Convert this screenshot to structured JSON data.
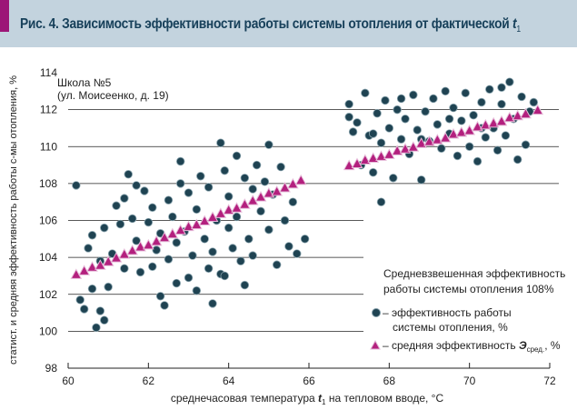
{
  "title": {
    "text": "Рис. 4. Зависимость эффективности работы системы отопления от фактической",
    "variable": "t",
    "subscript": "1"
  },
  "colors": {
    "title_bg": "#c3d3de",
    "accent": "#9c1677",
    "dots": "#1f4352",
    "triangles": "#b3207e"
  },
  "chart_data": {
    "type": "scatter",
    "xlabel": "среднечасовая температура t1 на тепловом вводе, °C",
    "xlabel_parts": {
      "before": "среднечасовая температура ",
      "var": "t",
      "sub": "1",
      "after": " на тепловом вводе, °C"
    },
    "ylabel": "статист. и средняя эффективность  работы с-мы отопления, %",
    "xlim": [
      60,
      72
    ],
    "ylim": [
      98,
      114
    ],
    "xticks": [
      "60",
      "62",
      "64",
      "66",
      "68",
      "70",
      "72"
    ],
    "yticks": [
      "98",
      "100",
      "102",
      "104",
      "106",
      "108",
      "110",
      "112",
      "114"
    ],
    "grid": "horizontal",
    "annotation": {
      "line1": "Школа №5",
      "line2": "(ул. Моисеенко, д. 19)"
    },
    "note": {
      "line1": "Средневзвешенная эффективность",
      "line2": "работы системы отопления 108%"
    },
    "legend": {
      "placement": "bottom-right",
      "dots_line1": "– эффективность работы",
      "dots_line2": "системы отопления, %",
      "tri_before": "– средняя эффективность ",
      "tri_var": "Э",
      "tri_sub": "сред.",
      "tri_after": ", %"
    },
    "series": [
      {
        "name": "эффективность работы системы отопления, %",
        "marker": "circle",
        "points": [
          [
            60.2,
            107.9
          ],
          [
            60.3,
            101.7
          ],
          [
            60.4,
            101.2
          ],
          [
            60.5,
            104.5
          ],
          [
            60.6,
            105.2
          ],
          [
            60.6,
            102.3
          ],
          [
            60.7,
            100.2
          ],
          [
            60.8,
            101.1
          ],
          [
            60.8,
            103.8
          ],
          [
            60.9,
            100.6
          ],
          [
            60.9,
            105.6
          ],
          [
            61.0,
            102.4
          ],
          [
            61.1,
            104.2
          ],
          [
            61.2,
            106.8
          ],
          [
            61.3,
            105.8
          ],
          [
            61.4,
            107.2
          ],
          [
            61.4,
            103.4
          ],
          [
            61.5,
            108.5
          ],
          [
            61.6,
            106.1
          ],
          [
            61.7,
            104.9
          ],
          [
            61.8,
            103.2
          ],
          [
            61.9,
            107.6
          ],
          [
            62.0,
            105.9
          ],
          [
            62.1,
            106.7
          ],
          [
            62.1,
            103.5
          ],
          [
            62.2,
            104.4
          ],
          [
            62.3,
            105.3
          ],
          [
            62.4,
            101.4
          ],
          [
            62.5,
            107.1
          ],
          [
            62.5,
            103.9
          ],
          [
            62.6,
            106.2
          ],
          [
            62.7,
            104.8
          ],
          [
            62.7,
            102.6
          ],
          [
            62.8,
            109.2
          ],
          [
            62.8,
            108.0
          ],
          [
            62.9,
            105.4
          ],
          [
            63.0,
            102.9
          ],
          [
            63.0,
            107.5
          ],
          [
            63.1,
            104.1
          ],
          [
            63.2,
            106.6
          ],
          [
            63.2,
            102.2
          ],
          [
            63.3,
            108.4
          ],
          [
            63.4,
            105.0
          ],
          [
            63.5,
            103.4
          ],
          [
            63.5,
            107.8
          ],
          [
            63.6,
            104.3
          ],
          [
            63.7,
            106.0
          ],
          [
            63.8,
            110.2
          ],
          [
            63.8,
            103.1
          ],
          [
            63.9,
            108.7
          ],
          [
            64.0,
            105.6
          ],
          [
            64.0,
            107.3
          ],
          [
            64.1,
            104.5
          ],
          [
            64.2,
            109.5
          ],
          [
            64.2,
            106.2
          ],
          [
            64.3,
            103.8
          ],
          [
            64.4,
            108.3
          ],
          [
            64.5,
            105.0
          ],
          [
            64.6,
            107.7
          ],
          [
            64.6,
            104.1
          ],
          [
            64.7,
            109.0
          ],
          [
            64.8,
            106.5
          ],
          [
            64.9,
            108.1
          ],
          [
            65.0,
            110.1
          ],
          [
            65.0,
            105.5
          ],
          [
            65.1,
            107.4
          ],
          [
            65.2,
            103.6
          ],
          [
            65.3,
            108.9
          ],
          [
            65.4,
            106.0
          ],
          [
            65.5,
            104.6
          ],
          [
            65.6,
            107.0
          ],
          [
            65.7,
            104.2
          ],
          [
            65.9,
            105.0
          ],
          [
            63.6,
            101.5
          ],
          [
            62.3,
            101.9
          ],
          [
            61.7,
            107.9
          ],
          [
            64.4,
            102.5
          ],
          [
            63.9,
            103.0
          ],
          [
            67.0,
            112.3
          ],
          [
            67.0,
            111.6
          ],
          [
            67.1,
            110.8
          ],
          [
            67.2,
            111.3
          ],
          [
            67.3,
            109.0
          ],
          [
            67.4,
            112.9
          ],
          [
            67.5,
            110.6
          ],
          [
            67.6,
            108.6
          ],
          [
            67.7,
            111.8
          ],
          [
            67.8,
            107.0
          ],
          [
            67.8,
            110.2
          ],
          [
            67.9,
            112.5
          ],
          [
            68.0,
            111.0
          ],
          [
            68.1,
            108.3
          ],
          [
            68.2,
            112.0
          ],
          [
            68.3,
            110.4
          ],
          [
            68.4,
            111.5
          ],
          [
            68.5,
            109.6
          ],
          [
            68.6,
            112.8
          ],
          [
            68.7,
            110.9
          ],
          [
            68.8,
            108.2
          ],
          [
            68.9,
            111.9
          ],
          [
            69.0,
            110.3
          ],
          [
            69.1,
            112.6
          ],
          [
            69.2,
            111.2
          ],
          [
            69.3,
            109.9
          ],
          [
            69.4,
            113.0
          ],
          [
            69.5,
            110.7
          ],
          [
            69.6,
            112.1
          ],
          [
            69.7,
            109.5
          ],
          [
            69.8,
            111.4
          ],
          [
            69.9,
            112.9
          ],
          [
            70.0,
            110.0
          ],
          [
            70.1,
            111.7
          ],
          [
            70.2,
            109.2
          ],
          [
            70.3,
            112.4
          ],
          [
            70.4,
            110.5
          ],
          [
            70.5,
            113.1
          ],
          [
            70.6,
            111.0
          ],
          [
            70.7,
            109.8
          ],
          [
            70.8,
            112.3
          ],
          [
            70.9,
            110.6
          ],
          [
            71.0,
            113.5
          ],
          [
            71.1,
            111.5
          ],
          [
            71.2,
            109.3
          ],
          [
            71.3,
            112.7
          ],
          [
            71.4,
            110.1
          ],
          [
            71.5,
            111.9
          ],
          [
            71.6,
            112.4
          ],
          [
            68.3,
            112.6
          ],
          [
            69.5,
            111.5
          ],
          [
            70.3,
            111.0
          ],
          [
            67.6,
            110.7
          ],
          [
            68.8,
            110.4
          ],
          [
            70.8,
            113.2
          ]
        ]
      },
      {
        "name": "средняя эффективность Эсред., %",
        "marker": "triangle",
        "points": [
          [
            60.2,
            103.1
          ],
          [
            60.4,
            103.3
          ],
          [
            60.6,
            103.5
          ],
          [
            60.8,
            103.6
          ],
          [
            61.0,
            103.8
          ],
          [
            61.2,
            104.0
          ],
          [
            61.4,
            104.2
          ],
          [
            61.6,
            104.4
          ],
          [
            61.8,
            104.6
          ],
          [
            62.0,
            104.7
          ],
          [
            62.2,
            104.9
          ],
          [
            62.4,
            105.1
          ],
          [
            62.6,
            105.3
          ],
          [
            62.8,
            105.5
          ],
          [
            63.0,
            105.7
          ],
          [
            63.2,
            105.8
          ],
          [
            63.4,
            106.0
          ],
          [
            63.6,
            106.2
          ],
          [
            63.8,
            106.4
          ],
          [
            64.0,
            106.6
          ],
          [
            64.2,
            106.7
          ],
          [
            64.4,
            106.9
          ],
          [
            64.6,
            107.1
          ],
          [
            64.8,
            107.3
          ],
          [
            65.0,
            107.5
          ],
          [
            65.2,
            107.6
          ],
          [
            65.4,
            107.8
          ],
          [
            65.6,
            108.0
          ],
          [
            65.8,
            108.2
          ],
          [
            67.0,
            109.0
          ],
          [
            67.2,
            109.1
          ],
          [
            67.4,
            109.3
          ],
          [
            67.6,
            109.4
          ],
          [
            67.8,
            109.5
          ],
          [
            68.0,
            109.6
          ],
          [
            68.2,
            109.8
          ],
          [
            68.4,
            109.9
          ],
          [
            68.6,
            110.0
          ],
          [
            68.8,
            110.2
          ],
          [
            69.0,
            110.3
          ],
          [
            69.2,
            110.4
          ],
          [
            69.4,
            110.5
          ],
          [
            69.6,
            110.7
          ],
          [
            69.8,
            110.8
          ],
          [
            70.0,
            110.9
          ],
          [
            70.2,
            111.1
          ],
          [
            70.4,
            111.2
          ],
          [
            70.6,
            111.3
          ],
          [
            70.8,
            111.4
          ],
          [
            71.0,
            111.6
          ],
          [
            71.2,
            111.7
          ],
          [
            71.4,
            111.8
          ],
          [
            71.7,
            112.0
          ]
        ]
      }
    ]
  }
}
